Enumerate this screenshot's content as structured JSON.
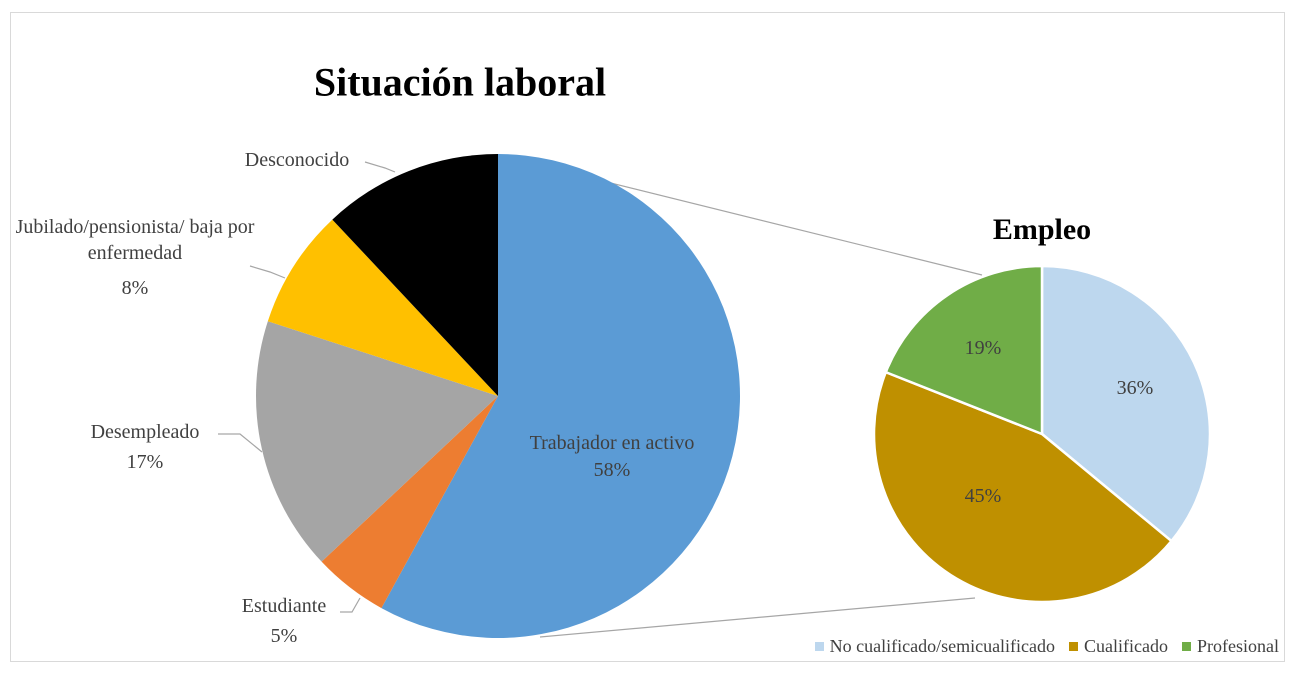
{
  "chart_data": [
    {
      "type": "pie",
      "title": "Situación laboral",
      "categories": [
        "Trabajador en activo",
        "Estudiante",
        "Desempleado",
        "Jubilado/pensionista/ baja por enfermedad",
        "Desconocido"
      ],
      "values": [
        58,
        5,
        17,
        8,
        12
      ],
      "value_labels": [
        "58%",
        "5%",
        "17%",
        "8%",
        null
      ],
      "colors": [
        "#5b9bd5",
        "#ed7d31",
        "#a5a5a5",
        "#ffc000",
        "#000000"
      ]
    },
    {
      "type": "pie",
      "title": "Empleo",
      "categories": [
        "No cualificado/semicualificado",
        "Cualificado",
        "Profesional"
      ],
      "values": [
        36,
        45,
        19
      ],
      "value_labels": [
        "36%",
        "45%",
        "19%"
      ],
      "colors": [
        "#bdd7ee",
        "#bf9000",
        "#70ad47"
      ],
      "legend": "bottom-right"
    }
  ]
}
